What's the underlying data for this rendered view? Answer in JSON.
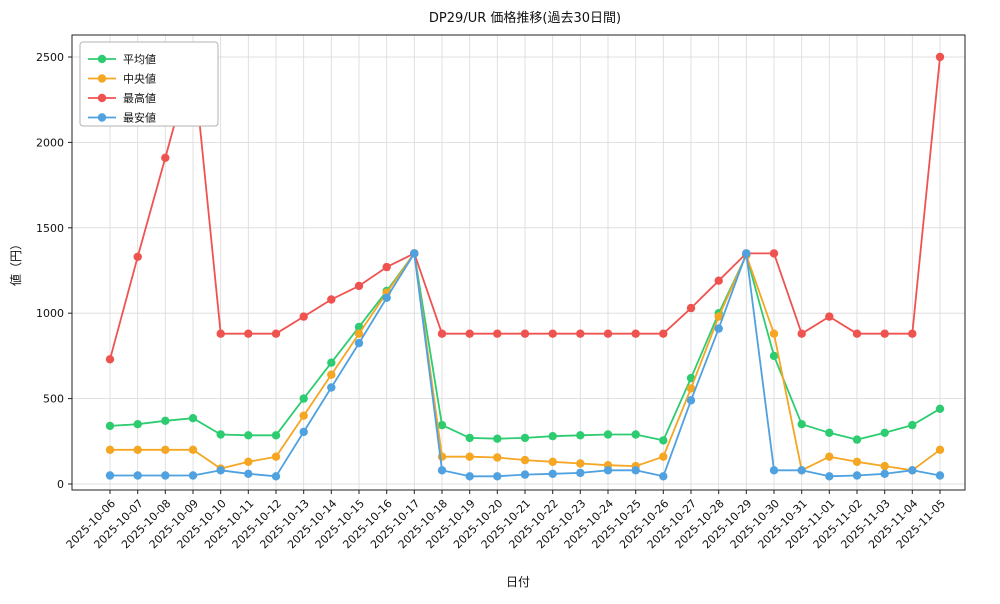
{
  "chart_data": {
    "type": "line",
    "title": "DP29/UR 価格推移(過去30日間)",
    "xlabel": "日付",
    "ylabel": "値（円）",
    "ylim": [
      0,
      2500
    ],
    "yticks": [
      0,
      500,
      1000,
      1500,
      2000,
      2500
    ],
    "grid": true,
    "legend_position": "upper-left",
    "marker": "circle",
    "categories": [
      "2025-10-06",
      "2025-10-07",
      "2025-10-08",
      "2025-10-09",
      "2025-10-10",
      "2025-10-11",
      "2025-10-12",
      "2025-10-13",
      "2025-10-14",
      "2025-10-15",
      "2025-10-16",
      "2025-10-17",
      "2025-10-18",
      "2025-10-19",
      "2025-10-20",
      "2025-10-21",
      "2025-10-22",
      "2025-10-23",
      "2025-10-24",
      "2025-10-25",
      "2025-10-26",
      "2025-10-27",
      "2025-10-28",
      "2025-10-29",
      "2025-10-30",
      "2025-10-31",
      "2025-11-01",
      "2025-11-02",
      "2025-11-03",
      "2025-11-04",
      "2025-11-05"
    ],
    "series": [
      {
        "key": "average",
        "name": "平均値",
        "color": "#2ecc71",
        "values": [
          340,
          350,
          370,
          385,
          290,
          285,
          285,
          500,
          710,
          920,
          1130,
          1350,
          345,
          270,
          265,
          270,
          280,
          285,
          290,
          290,
          255,
          620,
          1000,
          1340,
          750,
          350,
          300,
          260,
          300,
          345,
          440
        ]
      },
      {
        "key": "median",
        "name": "中央値",
        "color": "#f5a623",
        "values": [
          200,
          200,
          200,
          200,
          90,
          130,
          160,
          400,
          640,
          880,
          1120,
          1350,
          160,
          160,
          155,
          140,
          130,
          120,
          110,
          105,
          160,
          560,
          980,
          1340,
          880,
          80,
          160,
          130,
          105,
          80,
          200
        ]
      },
      {
        "key": "max",
        "name": "最高値",
        "color": "#ef5350",
        "values": [
          730,
          1330,
          1910,
          2500,
          880,
          880,
          880,
          980,
          1080,
          1160,
          1270,
          1350,
          880,
          880,
          880,
          880,
          880,
          880,
          880,
          880,
          880,
          1030,
          1190,
          1350,
          1350,
          880,
          980,
          880,
          880,
          880,
          2500
        ]
      },
      {
        "key": "min",
        "name": "最安値",
        "color": "#4fa1e0",
        "values": [
          50,
          50,
          50,
          50,
          80,
          60,
          45,
          305,
          565,
          825,
          1090,
          1350,
          80,
          45,
          45,
          55,
          60,
          65,
          80,
          80,
          45,
          490,
          910,
          1350,
          80,
          80,
          45,
          50,
          60,
          80,
          50
        ]
      }
    ]
  }
}
